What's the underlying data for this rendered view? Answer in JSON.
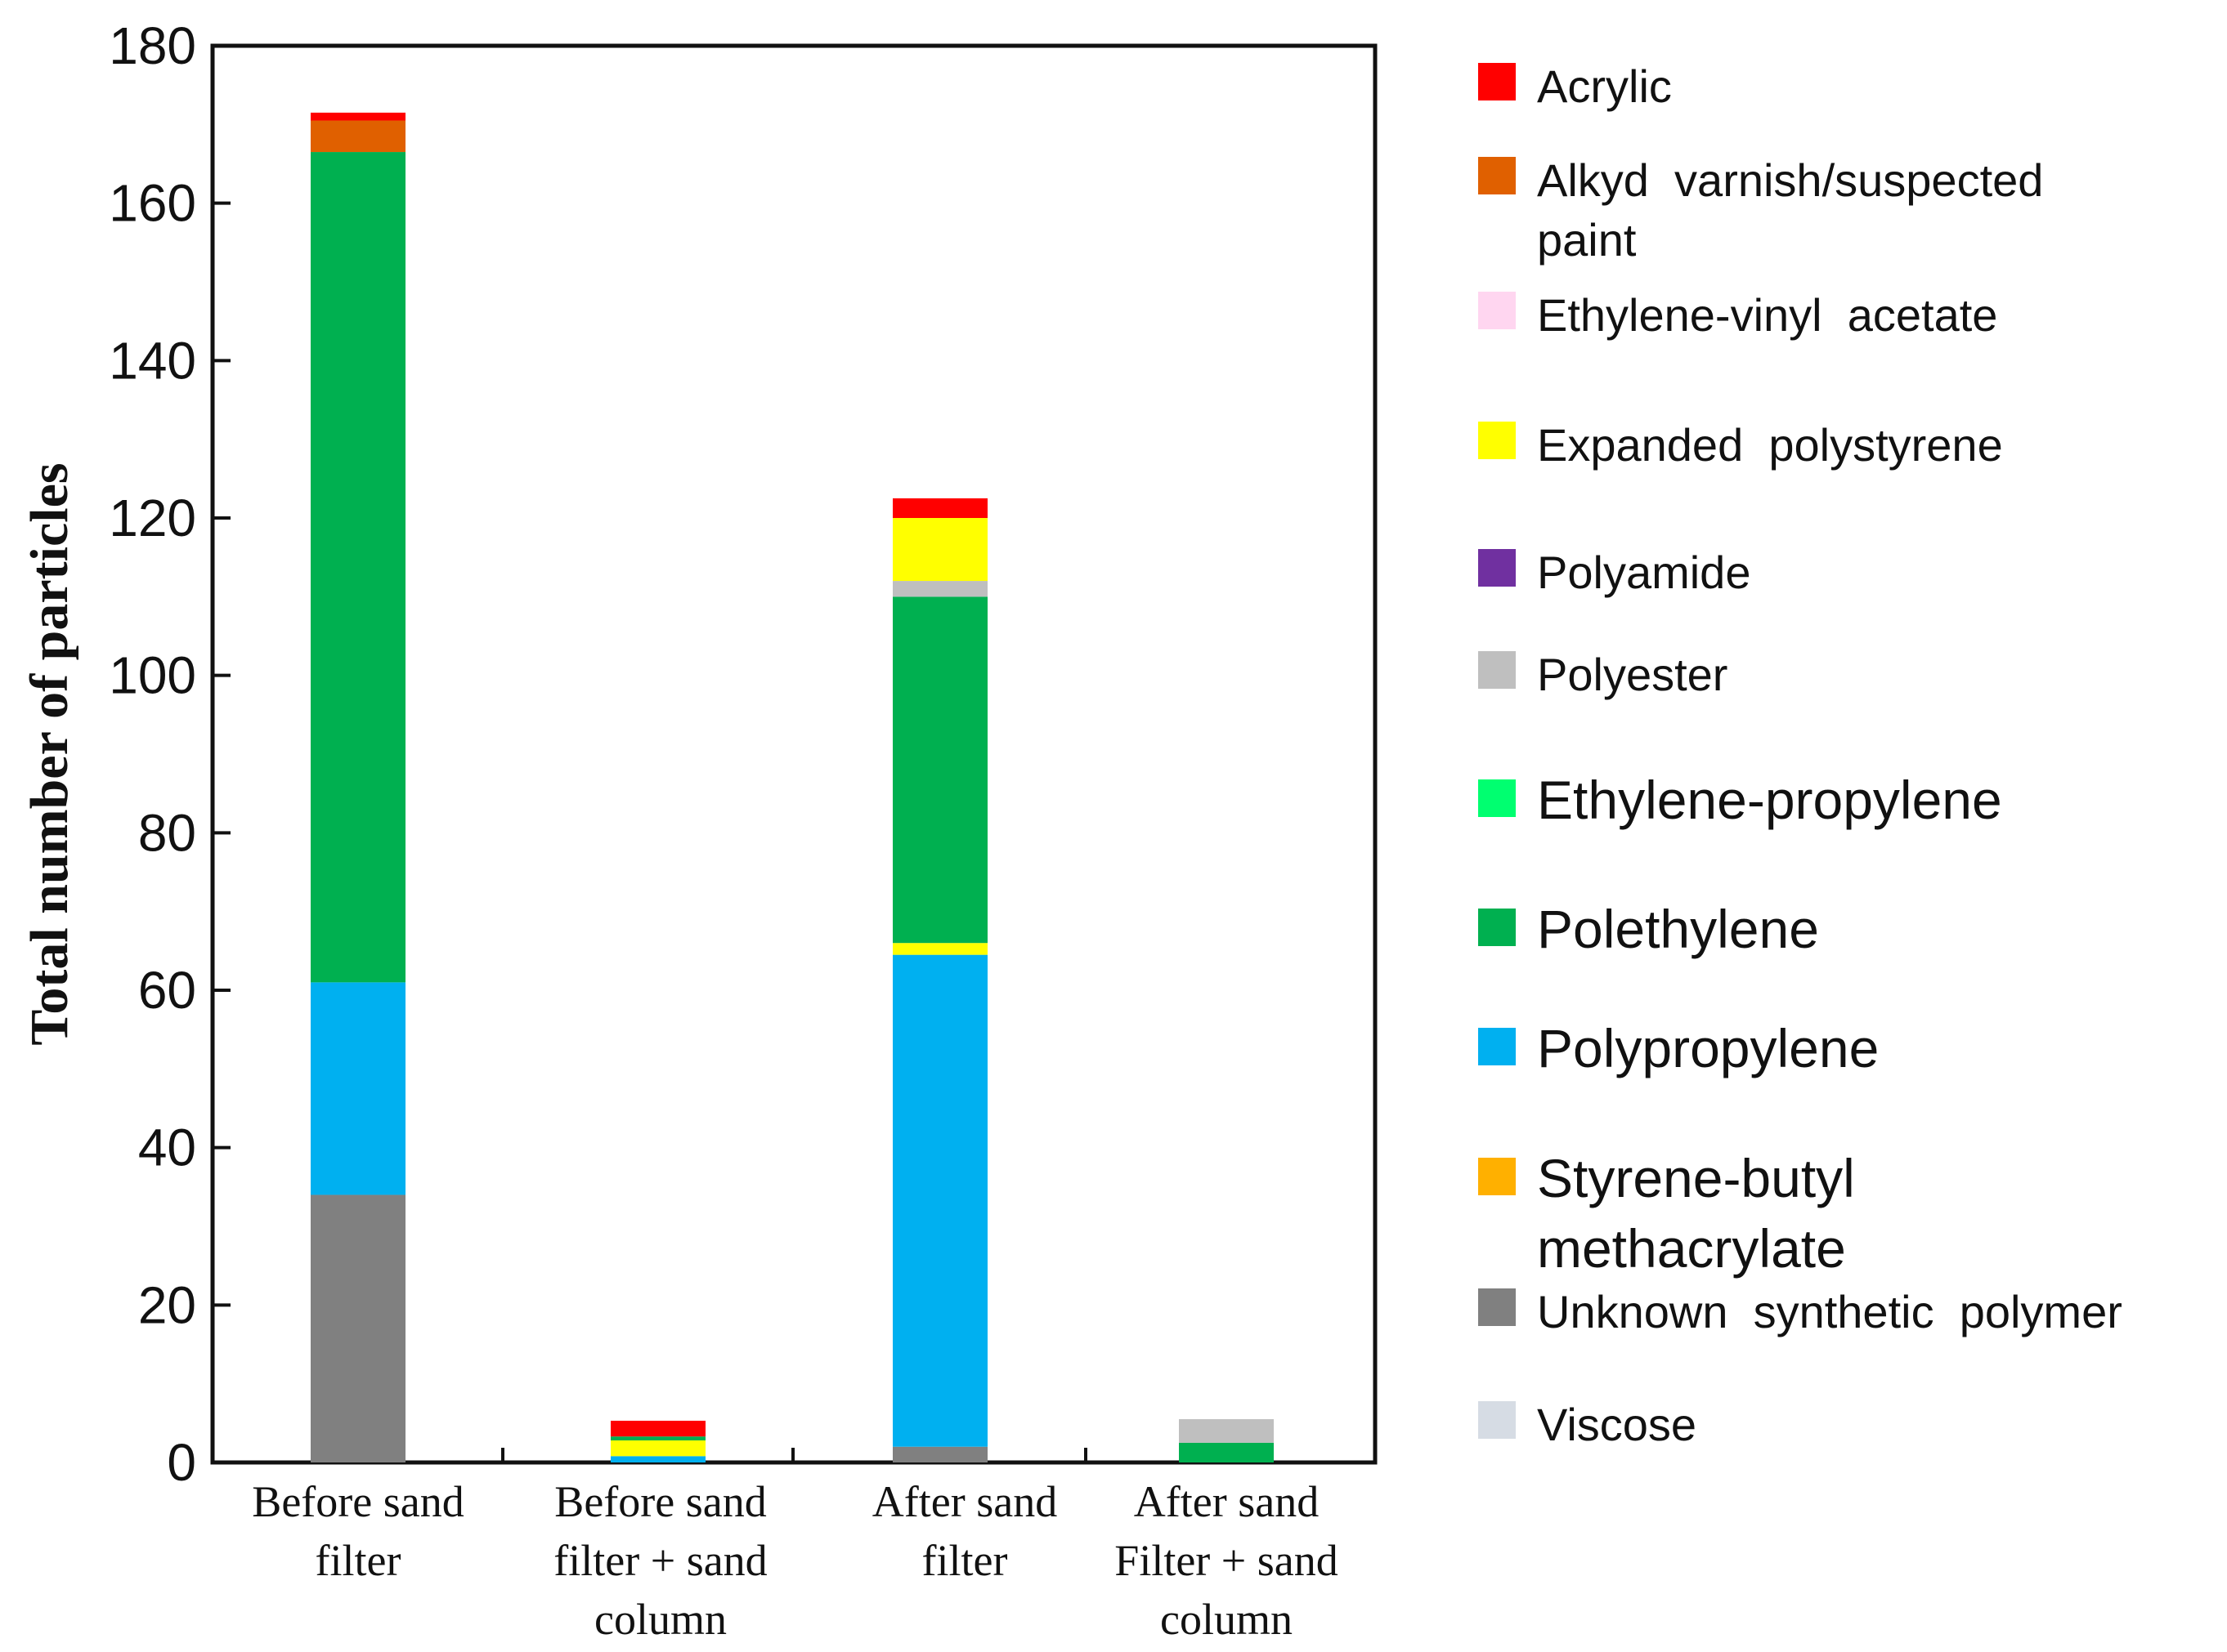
{
  "chart_data": {
    "type": "bar",
    "stacked": true,
    "ylabel": "Total number of particles",
    "ylim": [
      0,
      180
    ],
    "yticks": [
      0,
      20,
      40,
      60,
      80,
      100,
      120,
      140,
      160,
      180
    ],
    "categories": [
      [
        "Before sand",
        "filter"
      ],
      [
        "Before sand",
        "filter + sand",
        "column"
      ],
      [
        "After sand",
        "filter"
      ],
      [
        "After sand",
        "Filter + sand",
        "column"
      ]
    ],
    "series": [
      {
        "name": "Unknown synthetic polymer",
        "legend_lines": [
          "Unknown  synthetic  polymer"
        ],
        "color": "#808080",
        "values": [
          34,
          0,
          2,
          0
        ]
      },
      {
        "name": "Viscose",
        "legend_lines": [
          "Viscose"
        ],
        "color": "#d6dce4",
        "values": [
          0,
          0,
          0,
          0
        ]
      },
      {
        "name": "Styrene-butyl methacrylate",
        "legend_lines": [
          "Styrene-butyl",
          "methacrylate"
        ],
        "color": "#ffb000",
        "values": [
          0,
          0,
          0,
          0
        ]
      },
      {
        "name": "Polypropylene",
        "legend_lines": [
          "Polypropylene"
        ],
        "color": "#00b0f0",
        "values": [
          27,
          0.8,
          62.5,
          0
        ]
      },
      {
        "name": "Expanded polystyrene",
        "legend_lines": [
          "Expanded  polystyrene"
        ],
        "color": "#ffff00",
        "values": [
          0,
          2,
          1.5,
          0
        ]
      },
      {
        "name": "Polethylene",
        "legend_lines": [
          "Polethylene"
        ],
        "color": "#00b050",
        "values": [
          105.5,
          0.5,
          44,
          2.5
        ]
      },
      {
        "name": "Ethylene-propylene",
        "legend_lines": [
          "Ethylene-propylene"
        ],
        "color": "#00ff70",
        "values": [
          0,
          0,
          0,
          0
        ]
      },
      {
        "name": "Polyester",
        "legend_lines": [
          "Polyester"
        ],
        "color": "#bfbfbf",
        "values": [
          0,
          0,
          2,
          3
        ]
      },
      {
        "name": "Polyamide",
        "legend_lines": [
          "Polyamide"
        ],
        "color": "#7030a0",
        "values": [
          0,
          0,
          0,
          0
        ]
      },
      {
        "name": "Ethylene-vinyl acetate",
        "legend_lines": [
          "Ethylene-vinyl  acetate"
        ],
        "color": "#ffd6f0",
        "values": [
          0,
          0,
          0,
          0
        ]
      },
      {
        "name": "Expanded polystyrene (top)",
        "legend_lines": [],
        "color": "#ffff00",
        "values": [
          0,
          0,
          8,
          0
        ]
      },
      {
        "name": "Alkyd varnish/suspected paint",
        "legend_lines": [
          "Alkyd  varnish/suspected",
          "paint"
        ],
        "color": "#e06000",
        "values": [
          4,
          0,
          0,
          0
        ]
      },
      {
        "name": "Acrylic",
        "legend_lines": [
          "Acrylic"
        ],
        "color": "#ff0000",
        "values": [
          1,
          2,
          2.5,
          0
        ]
      }
    ],
    "legend_order": [
      "Acrylic",
      "Alkyd varnish/suspected paint",
      "Ethylene-vinyl acetate",
      "Expanded polystyrene",
      "Polyamide",
      "Polyester",
      "Ethylene-propylene",
      "Polethylene",
      "Polypropylene",
      "Styrene-butyl methacrylate",
      "Unknown synthetic polymer",
      "Viscose"
    ],
    "legend_position": "right",
    "grid": false
  }
}
